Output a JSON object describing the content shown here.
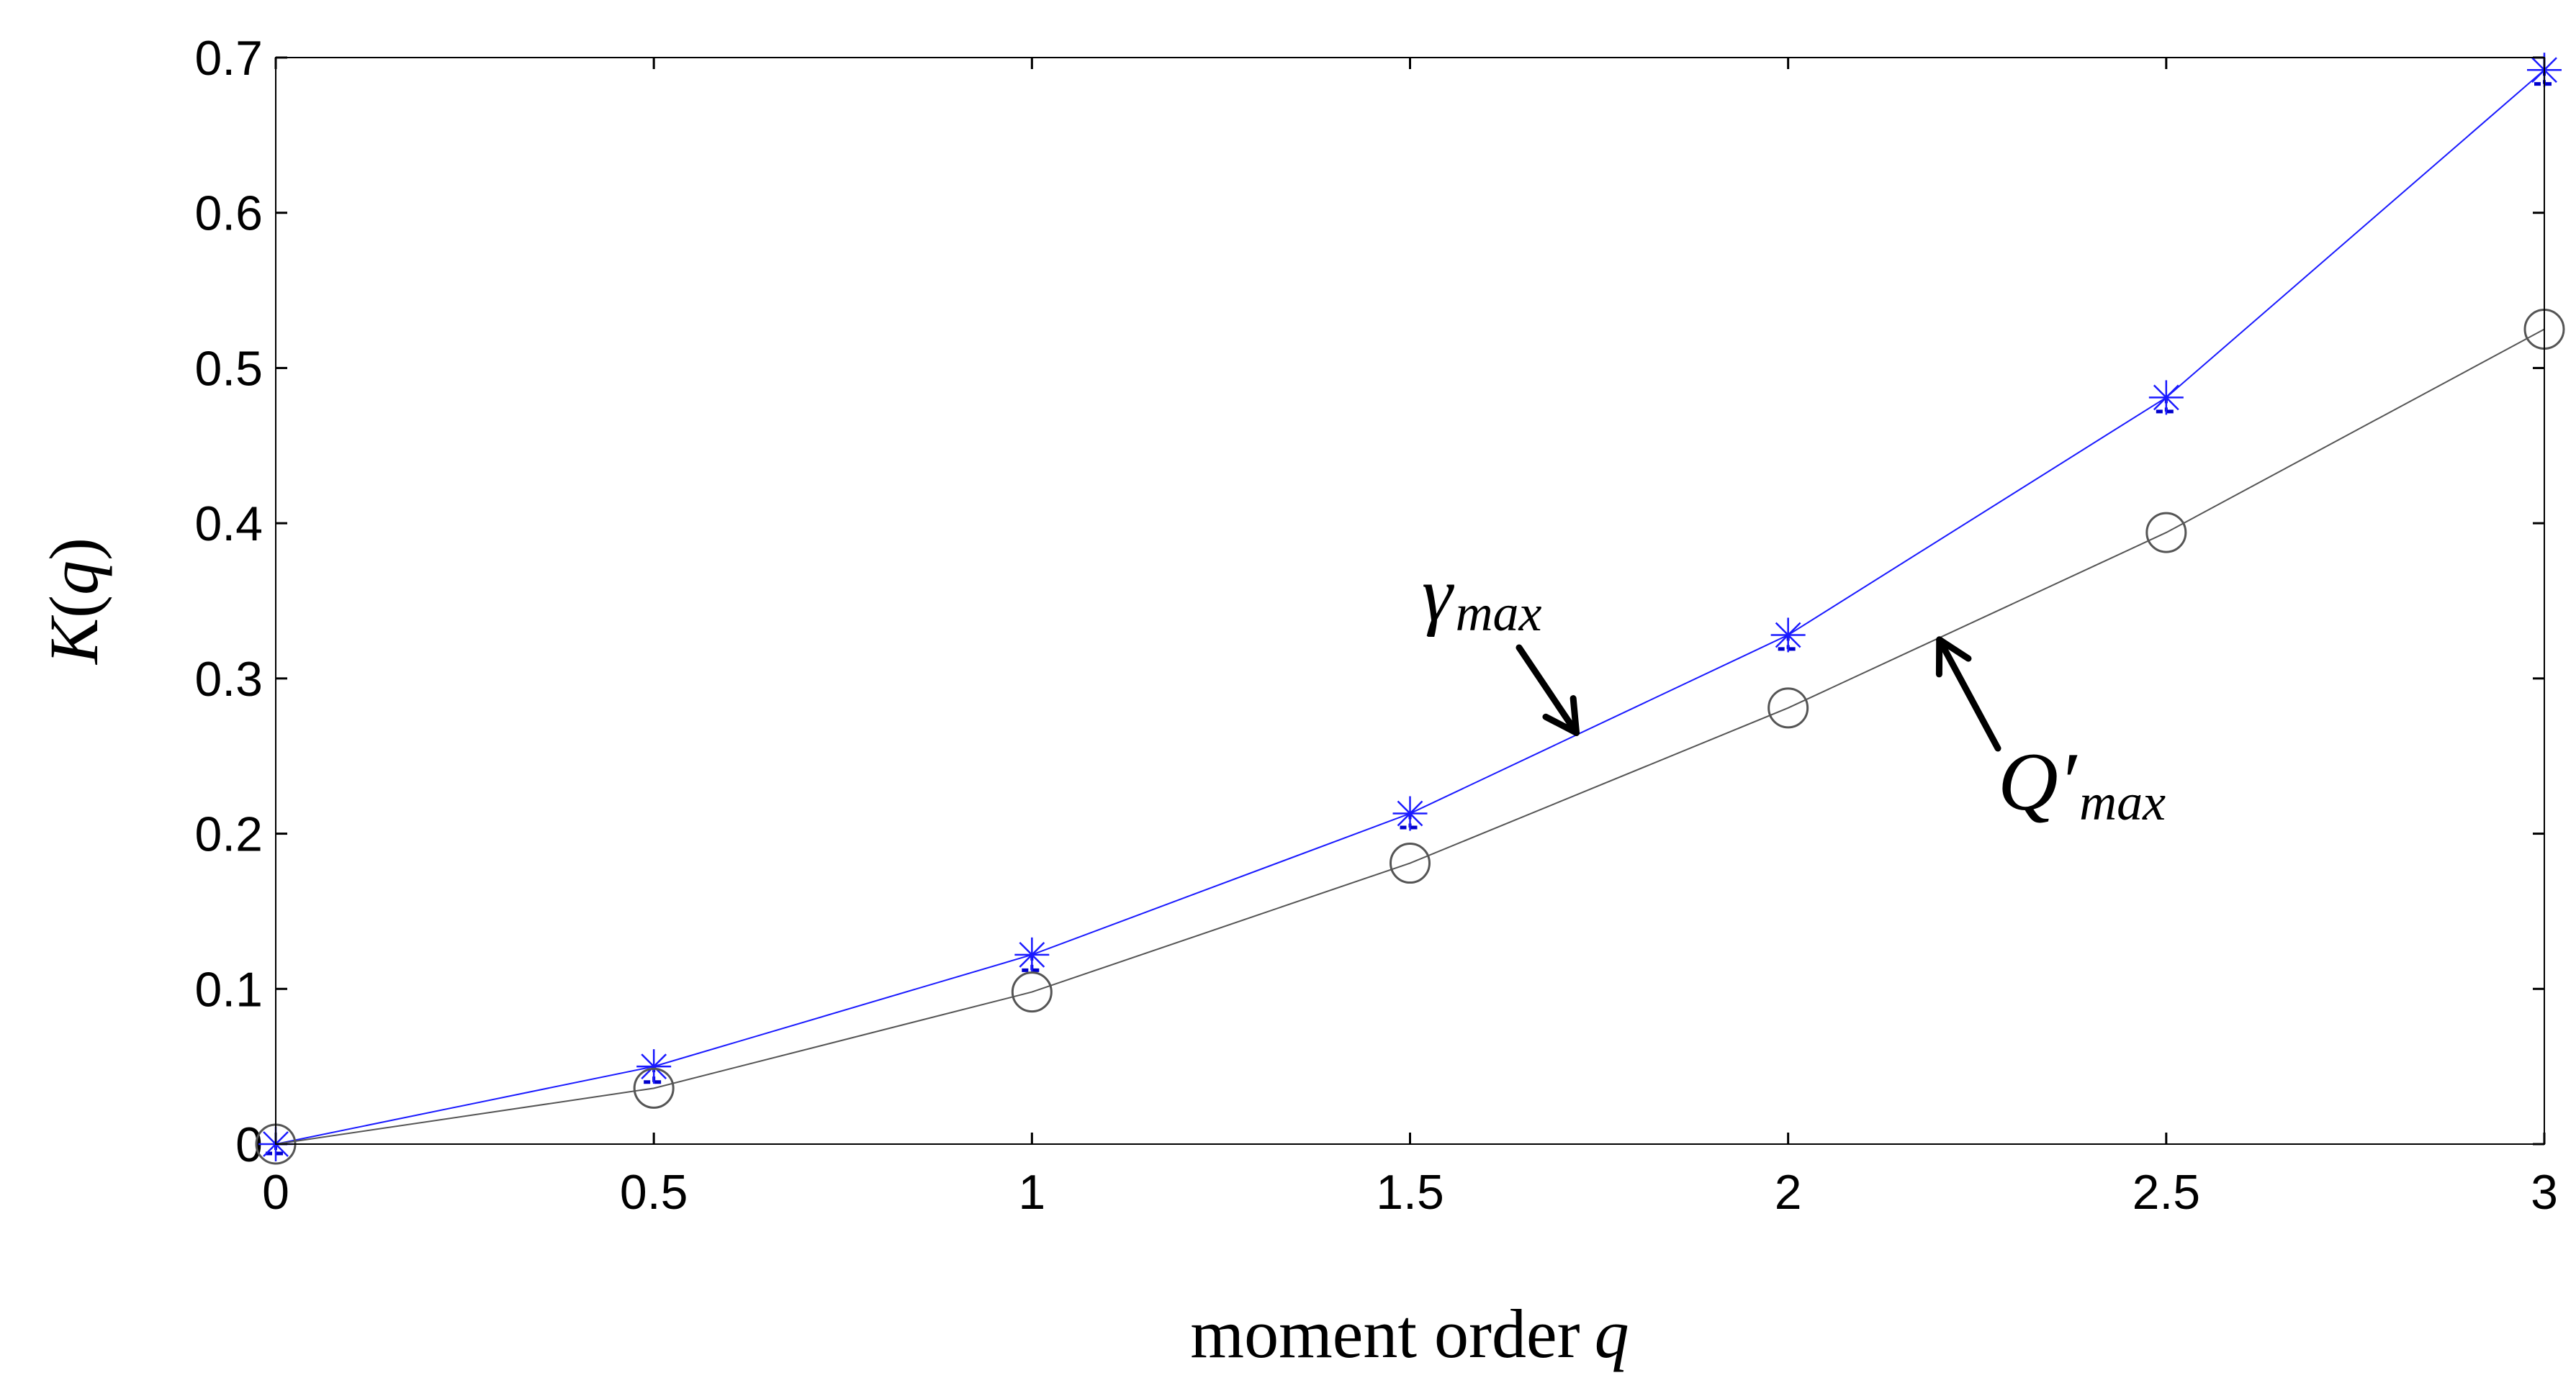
{
  "chart_data": {
    "type": "line",
    "xlabel": {
      "text": "moment order",
      "var": "q"
    },
    "ylabel": {
      "func": "K",
      "open": "(",
      "var": "q",
      "close": ")"
    },
    "xlim": [
      0,
      3
    ],
    "ylim": [
      0,
      0.7
    ],
    "xticks": [
      "0",
      "0.5",
      "1",
      "1.5",
      "2",
      "2.5",
      "3"
    ],
    "yticks": [
      "0",
      "0.1",
      "0.2",
      "0.3",
      "0.4",
      "0.5",
      "0.6",
      "0.7"
    ],
    "x": [
      0,
      0.5,
      1,
      1.5,
      2,
      2.5,
      3
    ],
    "series": [
      {
        "name": "γmax",
        "marker": "asterisk",
        "color": "#1a1aff",
        "values": [
          0.0,
          0.05,
          0.122,
          0.213,
          0.328,
          0.481,
          0.692
        ],
        "errors": [
          0.006,
          0.01,
          0.01,
          0.009,
          0.009,
          0.009,
          0.009
        ]
      },
      {
        "name": "Q′max",
        "marker": "circle",
        "color": "#555555",
        "values": [
          0.0,
          0.036,
          0.098,
          0.181,
          0.281,
          0.394,
          0.525
        ]
      }
    ],
    "annotations": [
      {
        "symbol": "γ",
        "subscript": "max",
        "series": 0,
        "arrow_to": [
          1.72,
          0.265
        ]
      },
      {
        "symbol": "Q′",
        "subscript": "max",
        "series": 1,
        "arrow_to": [
          2.2,
          0.325
        ]
      }
    ],
    "grid": false
  }
}
